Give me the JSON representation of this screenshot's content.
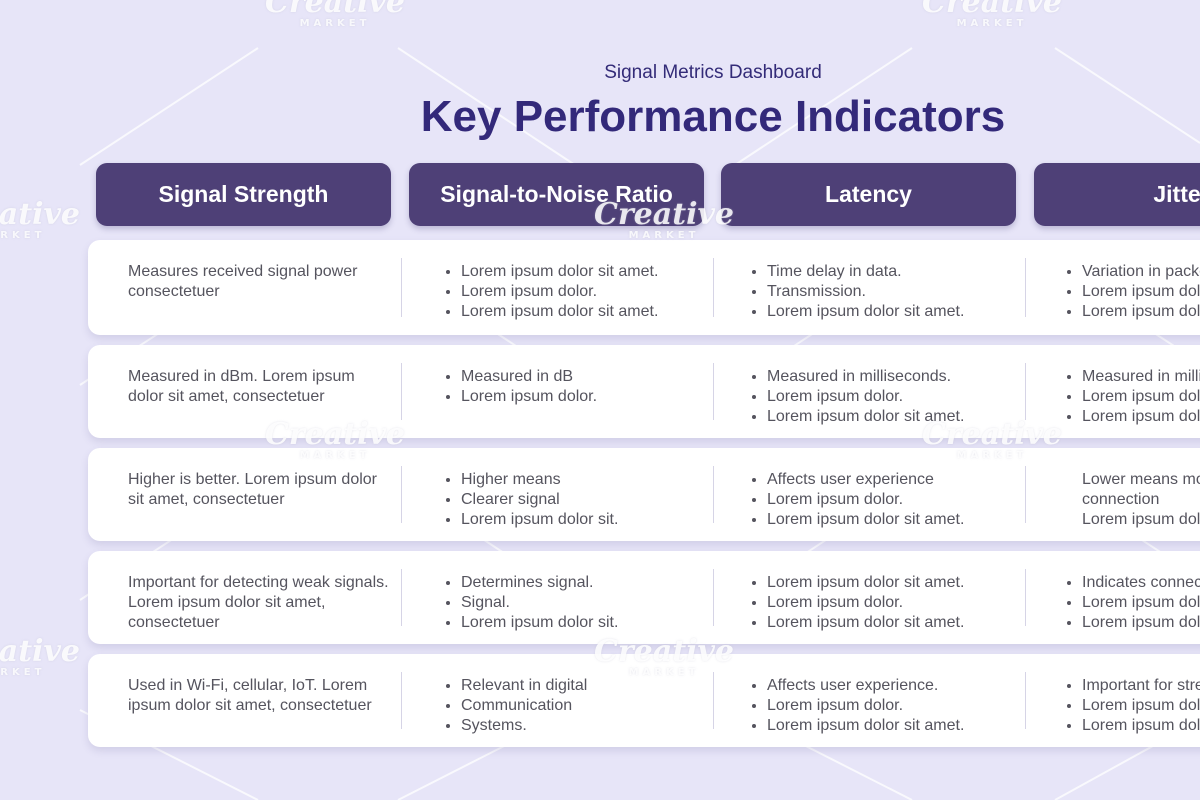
{
  "dashboard": {
    "subtitle": "Signal Metrics Dashboard",
    "title": "Key Performance Indicators"
  },
  "columns": [
    {
      "label": "Signal Strength"
    },
    {
      "label": "Signal-to-Noise Ratio"
    },
    {
      "label": "Latency"
    },
    {
      "label": "Jitter"
    }
  ],
  "rows": [
    {
      "c0": "Measures received signal power consectetuer",
      "c1": [
        "Lorem ipsum dolor sit amet.",
        "Lorem ipsum dolor.",
        "Lorem ipsum dolor sit amet."
      ],
      "c2": [
        "Time delay in data.",
        "Transmission.",
        "Lorem ipsum dolor sit amet."
      ],
      "c3": [
        "Variation in packet",
        "Lorem ipsum dolor.",
        "Lorem ipsum dolor sit amet."
      ]
    },
    {
      "c0": "Measured in dBm. Lorem ipsum dolor sit amet, consectetuer",
      "c1": [
        "Measured in dB",
        "Lorem ipsum dolor."
      ],
      "c2": [
        "Measured in milliseconds.",
        "Lorem ipsum dolor.",
        "Lorem ipsum dolor sit amet."
      ],
      "c3": [
        "Measured in milliseconds.",
        "Lorem ipsum dolor.",
        "Lorem ipsum dolor sit amet."
      ]
    },
    {
      "c0": "Higher is better. Lorem ipsum dolor sit amet, consectetuer",
      "c1": [
        "Higher means",
        "Clearer signal",
        "Lorem ipsum dolor sit."
      ],
      "c2": [
        "Affects user experience",
        "Lorem ipsum dolor.",
        "Lorem ipsum dolor sit amet."
      ],
      "c3": [
        "Lower means more stable",
        "connection",
        "Lorem ipsum dolor sit amet."
      ]
    },
    {
      "c0": "Important for detecting weak signals. Lorem ipsum dolor sit amet, consectetuer",
      "c1": [
        "Determines signal.",
        "Signal.",
        "Lorem ipsum dolor sit."
      ],
      "c2": [
        "Lorem ipsum dolor sit amet.",
        "Lorem ipsum dolor.",
        "Lorem ipsum dolor sit amet."
      ],
      "c3": [
        "Indicates connection",
        "Lorem ipsum dolor.",
        "Lorem ipsum dolor sit amet."
      ]
    },
    {
      "c0": "Used in Wi-Fi, cellular, IoT. Lorem ipsum dolor sit amet, consectetuer",
      "c1": [
        "Relevant in digital",
        "Communication",
        "Systems."
      ],
      "c2": [
        "Affects user experience.",
        "Lorem ipsum dolor.",
        "Lorem ipsum dolor sit amet."
      ],
      "c3": [
        "Important for streaming",
        "Lorem ipsum dolor.",
        "Lorem ipsum dolor sit amet."
      ]
    }
  ],
  "watermark": {
    "brand": "Creative",
    "sub": "MARKET"
  },
  "colors": {
    "background": "#e7e5f8",
    "header": "#4e4077",
    "title": "#33297a",
    "row": "#ffffff",
    "text": "#55545e"
  }
}
